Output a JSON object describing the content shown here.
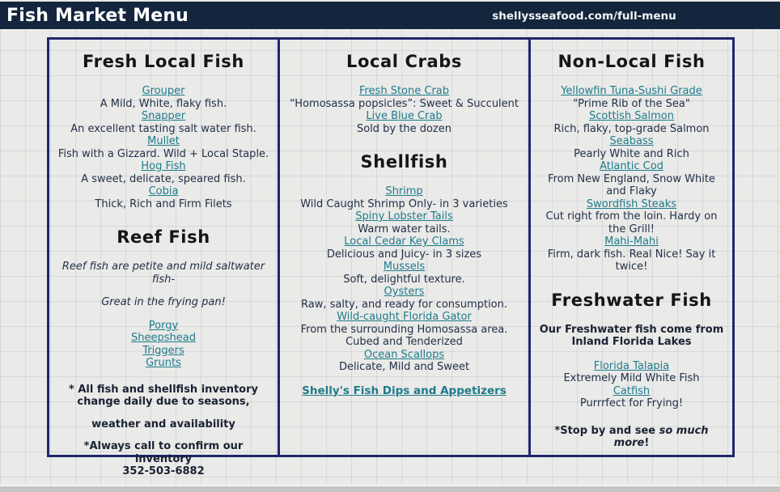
{
  "header": {
    "title": "Fish Market Menu",
    "url": "shellysseafood.com/full-menu"
  },
  "colors": {
    "header_bg": "#14263e",
    "panel_border": "#20266b",
    "link": "#1e7b8c",
    "body_text": "#233048",
    "heading_text": "#151515",
    "page_bg": "#eaeae8"
  },
  "columns": [
    {
      "sections": [
        {
          "heading": "Fresh Local Fish",
          "items": [
            {
              "link": "Grouper",
              "desc": "A Mild, White, flaky fish."
            },
            {
              "link": "Snapper",
              "desc": "An excellent tasting salt water fish."
            },
            {
              "link": "Mullet",
              "desc": "Fish with a Gizzard. Wild + Local Staple."
            },
            {
              "link": "Hog Fish",
              "desc": "A sweet, delicate, speared fish."
            },
            {
              "link": "Cobia",
              "desc": "Thick, Rich and Firm Filets"
            }
          ]
        },
        {
          "heading": "Reef Fish",
          "intro": [
            "Reef fish are petite and mild saltwater fish-",
            "Great in the frying pan!"
          ],
          "links": [
            "Porgy",
            "Sheepshead",
            "Triggers",
            "Grunts"
          ]
        },
        {
          "notes": [
            "* All fish and shellfish inventory change daily due to seasons,",
            "weather and availability",
            "*Always call to confirm our inventory",
            "352-503-6882"
          ]
        }
      ]
    },
    {
      "sections": [
        {
          "heading": "Local Crabs",
          "items": [
            {
              "link": "Fresh Stone Crab",
              "desc": "“Homosassa popsicles”: Sweet & Succulent"
            },
            {
              "link": "Live Blue Crab",
              "desc": "Sold by the dozen"
            }
          ]
        },
        {
          "heading": "Shellfish",
          "items": [
            {
              "link": "Shrimp",
              "desc": "Wild Caught Shrimp Only- in 3 varieties"
            },
            {
              "link": "Spiny Lobster Tails",
              "desc": "Warm water tails."
            },
            {
              "link": "Local Cedar Key Clams",
              "desc": "Delicious and Juicy- in 3 sizes"
            },
            {
              "link": "Mussels",
              "desc": "Soft, delightful texture."
            },
            {
              "link": "Oysters",
              "desc": "Raw, salty, and ready for consumption."
            },
            {
              "link": "Wild-caught Florida Gator",
              "desc": "From the surrounding Homosassa area. Cubed and Tenderized"
            },
            {
              "link": "Ocean Scallops",
              "desc": "Delicate, Mild and Sweet"
            }
          ]
        },
        {
          "footer_link": "Shelly's Fish Dips and Appetizers"
        }
      ]
    },
    {
      "sections": [
        {
          "heading": "Non-Local Fish",
          "items": [
            {
              "link": "Yellowfin Tuna-Sushi Grade",
              "desc": "\"Prime Rib of the Sea\""
            },
            {
              "link": "Scottish Salmon",
              "desc": "Rich, flaky, top-grade Salmon"
            },
            {
              "link": "Seabass",
              "desc": "Pearly White and Rich"
            },
            {
              "link": "Atlantic Cod",
              "desc": "From New England, Snow White and Flaky"
            },
            {
              "link": "Swordfish Steaks",
              "desc": "Cut right from the loin. Hardy on the Grill!"
            },
            {
              "link": "Mahi-Mahi",
              "desc": "Firm, dark fish. Real Nice! Say it twice!"
            }
          ]
        },
        {
          "heading": "Freshwater Fish",
          "intro_bold": "Our Freshwater fish come from Inland Florida Lakes",
          "items": [
            {
              "link": "Florida Talapia",
              "desc": "Extremely Mild White Fish"
            },
            {
              "link": "Catfish",
              "desc": "Purrrfect for Frying!"
            }
          ]
        },
        {
          "note": {
            "prefix": "*Stop by and see ",
            "italic": "so much more",
            "suffix": "!"
          }
        }
      ]
    }
  ]
}
